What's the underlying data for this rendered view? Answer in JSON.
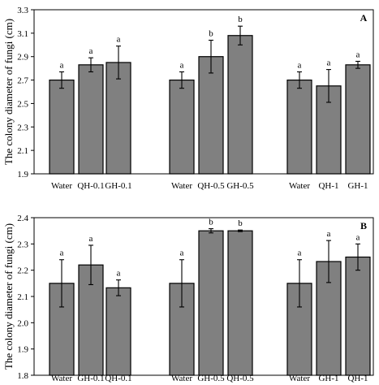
{
  "chart_data": [
    {
      "type": "bar",
      "panel_label": "A",
      "ylabel": "The colony diameter of fungi (cm)",
      "ylim": [
        1.9,
        3.3
      ],
      "yticks": [
        "1.9",
        "2.1",
        "2.3",
        "2.5",
        "2.7",
        "2.9",
        "3.1",
        "3.3"
      ],
      "groups": [
        {
          "bars": [
            {
              "category": "Water",
              "value": 2.7,
              "error": 0.07,
              "sig": "a"
            },
            {
              "category": "QH-0.1",
              "value": 2.83,
              "error": 0.06,
              "sig": "a"
            },
            {
              "category": "GH-0.1",
              "value": 2.85,
              "error": 0.14,
              "sig": "a"
            }
          ]
        },
        {
          "bars": [
            {
              "category": "Water",
              "value": 2.7,
              "error": 0.07,
              "sig": "a"
            },
            {
              "category": "QH-0.5",
              "value": 2.9,
              "error": 0.14,
              "sig": "b"
            },
            {
              "category": "GH-0.5",
              "value": 3.08,
              "error": 0.08,
              "sig": "b"
            }
          ]
        },
        {
          "bars": [
            {
              "category": "Water",
              "value": 2.7,
              "error": 0.07,
              "sig": "a"
            },
            {
              "category": "QH-1",
              "value": 2.65,
              "error": 0.14,
              "sig": "a"
            },
            {
              "category": "GH-1",
              "value": 2.83,
              "error": 0.03,
              "sig": "a"
            }
          ]
        }
      ]
    },
    {
      "type": "bar",
      "panel_label": "B",
      "ylabel": "The colony diameter of fungi (cm)",
      "ylim": [
        1.8,
        2.4
      ],
      "yticks": [
        "1.8",
        "1.9",
        "2.0",
        "2.1",
        "2.2",
        "2.3",
        "2.4"
      ],
      "groups": [
        {
          "bars": [
            {
              "category": "Water",
              "value": 2.15,
              "error": 0.09,
              "sig": "a"
            },
            {
              "category": "GH-0.1",
              "value": 2.22,
              "error": 0.075,
              "sig": "a"
            },
            {
              "category": "QH-0.1",
              "value": 2.133,
              "error": 0.03,
              "sig": "a"
            }
          ]
        },
        {
          "bars": [
            {
              "category": "Water",
              "value": 2.15,
              "error": 0.09,
              "sig": "a"
            },
            {
              "category": "GH-0.5",
              "value": 2.35,
              "error": 0.008,
              "sig": "b"
            },
            {
              "category": "QH-0.5",
              "value": 2.35,
              "error": 0.003,
              "sig": "b"
            }
          ]
        },
        {
          "bars": [
            {
              "category": "Water",
              "value": 2.15,
              "error": 0.09,
              "sig": "a"
            },
            {
              "category": "GH-1",
              "value": 2.233,
              "error": 0.08,
              "sig": "a"
            },
            {
              "category": "QH-1",
              "value": 2.25,
              "error": 0.05,
              "sig": "a"
            }
          ]
        }
      ]
    }
  ]
}
